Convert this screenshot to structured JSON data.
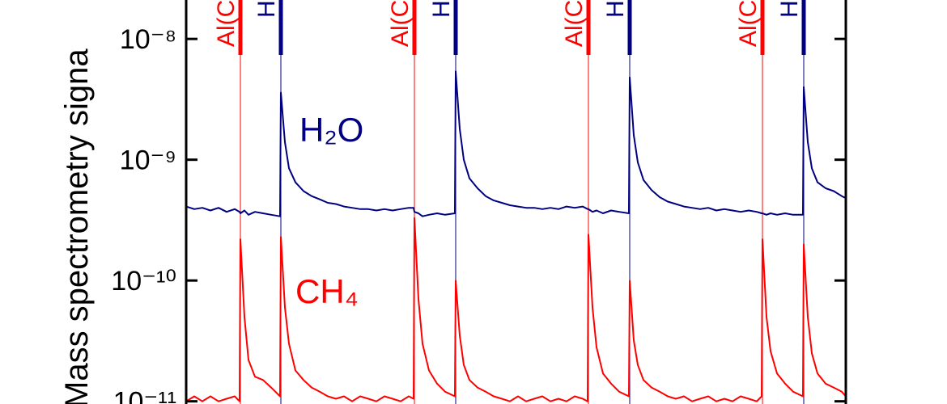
{
  "chart_data": {
    "type": "line",
    "y_label": "Mass spectrometry signa",
    "log_y": true,
    "xlim": [
      0,
      163
    ],
    "ylim": [
      9.5e-12,
      2.1e-08
    ],
    "yticks": [
      {
        "value": 1e-08,
        "label": "10⁻⁸"
      },
      {
        "value": 1e-09,
        "label": "10⁻⁹"
      },
      {
        "value": 1e-10,
        "label": "10⁻¹⁰"
      },
      {
        "value": 1e-11,
        "label": "10⁻¹¹"
      }
    ],
    "pulses": [
      {
        "label": "Al(C",
        "x": 13.4,
        "color": "#ff0000"
      },
      {
        "label": "H",
        "x": 23.4,
        "color": "#000080"
      },
      {
        "label": "Al(C",
        "x": 56.4,
        "color": "#ff0000"
      },
      {
        "label": "H",
        "x": 66.6,
        "color": "#000080"
      },
      {
        "label": "Al(C",
        "x": 99.4,
        "color": "#ff0000"
      },
      {
        "label": "H",
        "x": 109.6,
        "color": "#000080"
      },
      {
        "label": "Al(C",
        "x": 142.4,
        "color": "#ff0000"
      },
      {
        "label": "H",
        "x": 152.6,
        "color": "#000080"
      }
    ],
    "x": [
      0,
      2,
      4,
      6,
      8,
      10,
      12,
      13.2,
      13.4,
      14.4,
      15.4,
      17,
      19,
      21,
      23.2,
      23.4,
      24.4,
      25.4,
      27,
      29,
      31,
      33,
      35,
      37,
      39,
      41,
      43,
      45,
      47,
      49,
      51,
      53,
      55,
      56.2,
      56.4,
      57.4,
      58.4,
      60,
      62,
      64,
      66.4,
      66.6,
      67.6,
      68.6,
      70,
      72,
      74,
      76,
      78,
      80,
      82,
      84,
      86,
      88,
      90,
      92,
      94,
      96,
      98,
      99.2,
      99.4,
      100.4,
      101.4,
      103,
      105,
      107,
      109.4,
      109.6,
      110.6,
      111.6,
      113,
      115,
      117,
      119,
      121,
      123,
      125,
      127,
      129,
      131,
      133,
      135,
      137,
      139,
      141,
      142.2,
      142.4,
      143.4,
      144.4,
      146,
      148,
      150,
      152.4,
      152.6,
      153.6,
      154.6,
      156,
      158,
      160,
      162,
      163
    ],
    "series": [
      {
        "name": "H₂O",
        "color": "#000080",
        "values": [
          4.1e-10,
          3.9e-10,
          4e-10,
          3.8e-10,
          4e-10,
          3.7e-10,
          3.9e-10,
          3.7e-10,
          3.6e-10,
          3.8e-10,
          3.5e-10,
          3.7e-10,
          3.6e-10,
          3.5e-10,
          3.4e-10,
          3.6e-09,
          1.4e-09,
          8.5e-10,
          6.5e-10,
          5.5e-10,
          5e-10,
          4.7e-10,
          4.4e-10,
          4.3e-10,
          4.1e-10,
          4e-10,
          3.9e-10,
          3.9e-10,
          3.8e-10,
          3.9e-10,
          3.8e-10,
          3.9e-10,
          4e-10,
          4e-10,
          3.7e-10,
          3.6e-10,
          3.4e-10,
          3.5e-10,
          3.6e-10,
          3.5e-10,
          3.6e-10,
          5.4e-09,
          1.8e-09,
          1e-09,
          7e-10,
          5.8e-10,
          5e-10,
          4.6e-10,
          4.4e-10,
          4.2e-10,
          4.1e-10,
          4e-10,
          4e-10,
          3.9e-10,
          4e-10,
          3.9e-10,
          4.1e-10,
          4e-10,
          4.1e-10,
          3.9e-10,
          3.9e-10,
          3.7e-10,
          3.8e-10,
          3.6e-10,
          3.8e-10,
          3.7e-10,
          3.6e-10,
          4.8e-09,
          1.6e-09,
          9.5e-10,
          6.8e-10,
          5.6e-10,
          4.9e-10,
          4.5e-10,
          4.3e-10,
          4.1e-10,
          4e-10,
          3.9e-10,
          4e-10,
          3.8e-10,
          3.9e-10,
          3.8e-10,
          3.7e-10,
          3.8e-10,
          3.7e-10,
          3.6e-10,
          3.6e-10,
          3.5e-10,
          3.6e-10,
          3.5e-10,
          3.6e-10,
          3.5e-10,
          3.5e-10,
          4e-09,
          1.4e-09,
          8.5e-10,
          6.5e-10,
          5.8e-10,
          5.5e-10,
          5e-10,
          4.8e-10
        ]
      },
      {
        "name": "CH₄",
        "color": "#ff0000",
        "values": [
          1e-11,
          1.1e-11,
          1e-11,
          1.1e-11,
          1e-11,
          1.05e-11,
          1.1e-11,
          1e-11,
          2.2e-10,
          5e-11,
          2.2e-11,
          1.6e-11,
          1.5e-11,
          1.3e-11,
          1.1e-11,
          2.3e-10,
          6e-11,
          3e-11,
          1.8e-11,
          1.5e-11,
          1.3e-11,
          1.2e-11,
          1.1e-11,
          1.05e-11,
          1.1e-11,
          1e-11,
          1.1e-11,
          1.05e-11,
          1e-11,
          1.1e-11,
          1.05e-11,
          1e-11,
          1.1e-11,
          1.05e-11,
          3.3e-10,
          7e-11,
          3e-11,
          1.8e-11,
          1.4e-11,
          1.2e-11,
          1.1e-11,
          1e-10,
          3.5e-11,
          2e-11,
          1.5e-11,
          1.3e-11,
          1.2e-11,
          1.1e-11,
          1.05e-11,
          1e-11,
          1.1e-11,
          1e-11,
          1.05e-11,
          1.1e-11,
          1e-11,
          1.05e-11,
          1e-11,
          1.1e-11,
          1.05e-11,
          1e-11,
          2.4e-10,
          6e-11,
          2.8e-11,
          1.7e-11,
          1.4e-11,
          1.2e-11,
          1.1e-11,
          1e-10,
          3.2e-11,
          2e-11,
          1.5e-11,
          1.3e-11,
          1.2e-11,
          1.1e-11,
          1.05e-11,
          1.1e-11,
          1e-11,
          1.05e-11,
          1.1e-11,
          1e-11,
          1.05e-11,
          1e-11,
          1.1e-11,
          1.05e-11,
          1e-11,
          1.1e-11,
          2.2e-10,
          5e-11,
          2.6e-11,
          1.7e-11,
          1.4e-11,
          1.2e-11,
          1.1e-11,
          2e-10,
          5e-11,
          2.5e-11,
          1.7e-11,
          1.4e-11,
          1.3e-11,
          1.2e-11,
          1.1e-11
        ]
      }
    ]
  }
}
